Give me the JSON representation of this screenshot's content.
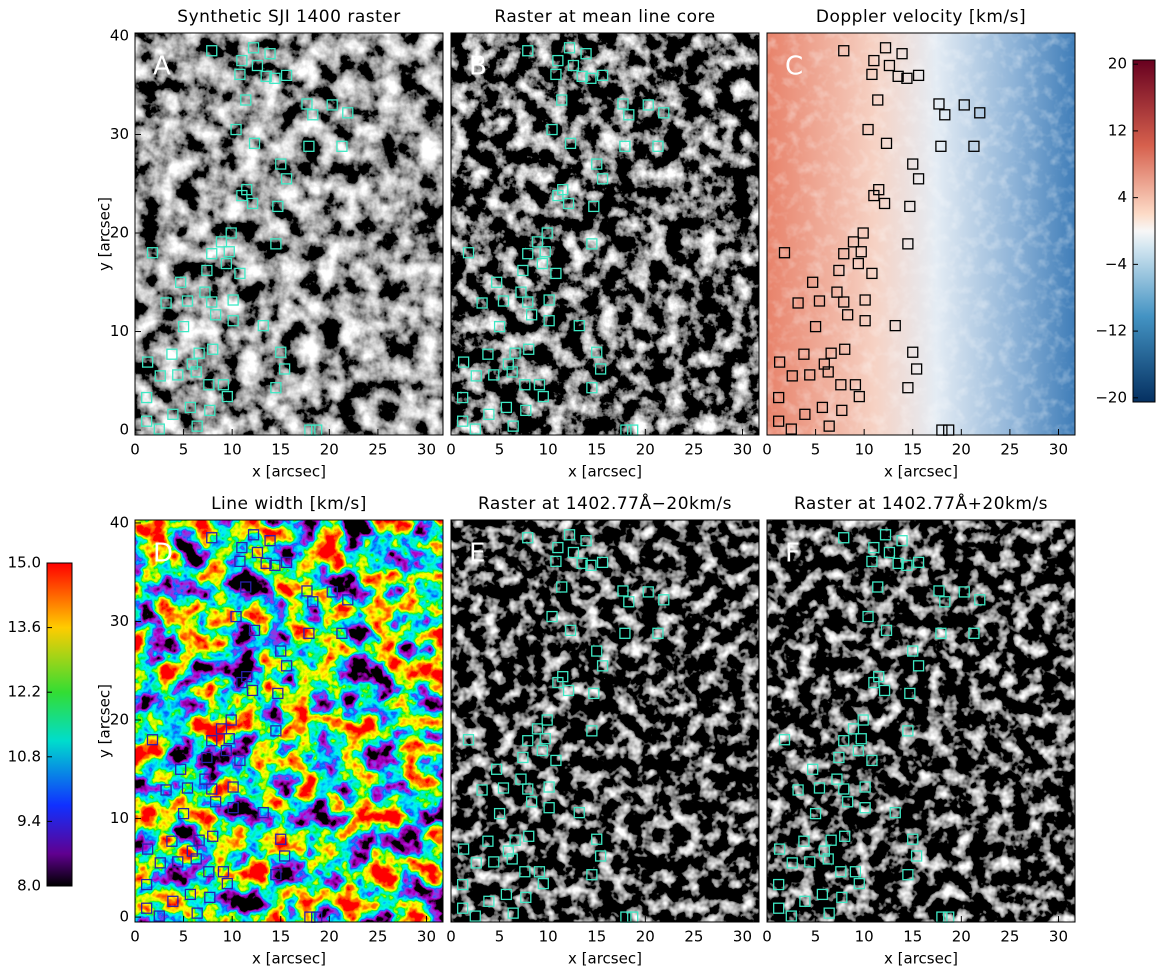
{
  "chart_data": [
    {
      "type": "image",
      "title": "Synthetic SJI 1400 raster",
      "label": "A",
      "xlabel": "x [arcsec]",
      "ylabel": "y [arcsec]",
      "background": "gray",
      "seed": 3,
      "marker_color": "#3ee8c4",
      "xlim": [
        0,
        31.7
      ],
      "ylim": [
        -0.5,
        40.3
      ],
      "xticks": [
        0,
        5,
        10,
        15,
        20,
        25,
        30
      ],
      "yticks": [
        0,
        10,
        20,
        30,
        40
      ]
    },
    {
      "type": "image",
      "title": "Raster at mean line core",
      "label": "B",
      "xlabel": "x [arcsec]",
      "background": "dim",
      "seed": 3,
      "marker_color": "#3ee8c4",
      "xlim": [
        0,
        31.7
      ],
      "ylim": [
        -0.5,
        40.3
      ],
      "xticks": [
        0,
        5,
        10,
        15,
        20,
        25,
        30
      ]
    },
    {
      "type": "image",
      "title": "Doppler velocity [km/s]",
      "label": "C",
      "xlabel": "x [arcsec]",
      "background": "diverging",
      "seed": 7,
      "marker_color": "#000000",
      "xlim": [
        0,
        31.7
      ],
      "ylim": [
        -0.5,
        40.3
      ],
      "xticks": [
        0,
        5,
        10,
        15,
        20,
        25,
        30
      ],
      "colorbar": {
        "side": "right",
        "colormap": "diverging",
        "lim": [
          -20.5,
          20.5
        ],
        "ticks": [
          20,
          12,
          4,
          {
            "value": -4,
            "label": "−4"
          },
          {
            "value": -12,
            "label": "−12"
          },
          {
            "value": -20,
            "label": "−20"
          }
        ]
      }
    },
    {
      "type": "image",
      "title": "Line width [km/s]",
      "label": "D",
      "xlabel": "x [arcsec]",
      "ylabel": "y [arcsec]",
      "background": "rainbow",
      "seed": 11,
      "marker_color": "#2a1fb0",
      "xlim": [
        0,
        31.7
      ],
      "ylim": [
        -0.5,
        40.3
      ],
      "xticks": [
        0,
        5,
        10,
        15,
        20,
        25,
        30
      ],
      "yticks": [
        0,
        10,
        20,
        30,
        40
      ],
      "colorbar": {
        "side": "left",
        "colormap": "rainbow",
        "lim": [
          8,
          15
        ],
        "ticks": [
          {
            "value": 15,
            "label": "15.0"
          },
          13.6,
          12.2,
          10.8,
          9.4,
          {
            "value": 8,
            "label": "8.0"
          }
        ]
      }
    },
    {
      "type": "image",
      "title": "Raster at 1402.77Å−20km/s",
      "label": "E",
      "xlabel": "x [arcsec]",
      "background": "dark",
      "seed": 5,
      "marker_color": "#3ee8c4",
      "xlim": [
        0,
        31.7
      ],
      "ylim": [
        -0.5,
        40.3
      ],
      "xticks": [
        0,
        5,
        10,
        15,
        20,
        25,
        30
      ]
    },
    {
      "type": "image",
      "title": "Raster at 1402.77Å+20km/s",
      "label": "F",
      "xlabel": "x [arcsec]",
      "background": "dark",
      "seed": 9,
      "marker_color": "#3ee8c4",
      "xlim": [
        0,
        31.7
      ],
      "ylim": [
        -0.5,
        40.3
      ],
      "xticks": [
        0,
        5,
        10,
        15,
        20,
        25,
        30
      ]
    }
  ],
  "markers": {
    "x": [
      7.9,
      12.2,
      13.9,
      11.0,
      12.6,
      10.8,
      13.5,
      14.4,
      15.6,
      11.4,
      17.7,
      20.3,
      21.9,
      18.3,
      10.4,
      12.3,
      17.9,
      21.3,
      15.0,
      15.6,
      11.5,
      11.0,
      12.1,
      14.7,
      9.9,
      8.9,
      1.8,
      9.7,
      7.9,
      9.4,
      7.4,
      10.8,
      4.7,
      14.5,
      7.2,
      7.9,
      10.1,
      3.2,
      5.4,
      8.3,
      10.1,
      5.0,
      13.2,
      8.0,
      1.3,
      3.8,
      6.6,
      15.0,
      5.9,
      15.4,
      2.6,
      4.4,
      6.3,
      7.6,
      9.1,
      14.5,
      1.2,
      5.7,
      7.7,
      9.5,
      3.9,
      1.2,
      2.5,
      6.4,
      18.0,
      18.7
    ],
    "y": [
      38.5,
      38.8,
      38.2,
      37.5,
      37.0,
      36.1,
      35.9,
      35.7,
      36.0,
      33.5,
      33.1,
      33.0,
      32.2,
      32.0,
      30.5,
      29.1,
      28.8,
      28.8,
      27.0,
      25.5,
      24.4,
      23.8,
      23.0,
      22.7,
      20.0,
      19.1,
      18.0,
      18.1,
      17.9,
      16.9,
      16.2,
      15.9,
      15.0,
      18.9,
      14.0,
      13.0,
      13.2,
      12.9,
      13.1,
      11.7,
      11.1,
      10.5,
      10.6,
      8.2,
      6.9,
      7.7,
      7.8,
      7.9,
      6.7,
      6.2,
      5.5,
      5.6,
      5.9,
      4.6,
      4.6,
      4.3,
      3.3,
      2.3,
      2.0,
      3.4,
      1.6,
      0.9,
      0.1,
      0.4,
      0,
      0
    ]
  }
}
